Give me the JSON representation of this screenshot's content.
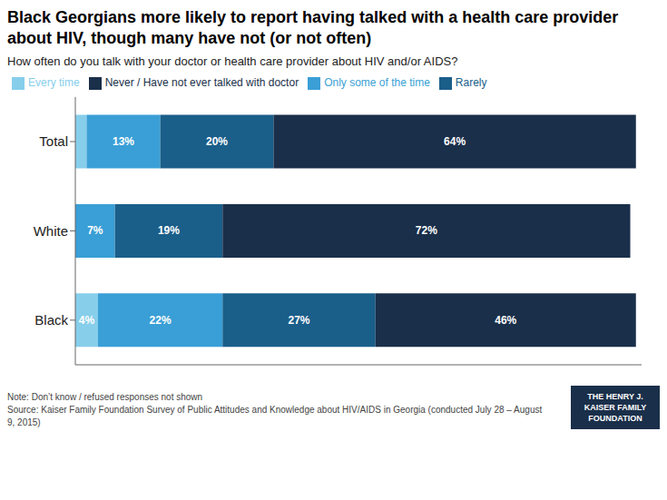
{
  "chart_data": {
    "type": "bar",
    "orientation": "horizontal",
    "stacked": true,
    "title": "Black Georgians more likely to report having talked with a health care provider about HIV, though many have not (or not often)",
    "subtitle": "How often do you talk with your doctor or health care provider about HIV and/or AIDS?",
    "categories": [
      "Total",
      "White",
      "Black"
    ],
    "series": [
      {
        "name": "Every time",
        "color": "#87CEEB",
        "values": [
          2,
          0,
          4
        ],
        "value_labels": [
          null,
          null,
          "4%"
        ]
      },
      {
        "name": "Only some of the time",
        "color": "#3a9fd6",
        "values": [
          13,
          7,
          22
        ],
        "value_labels": [
          "13%",
          "7%",
          "22%"
        ]
      },
      {
        "name": "Rarely",
        "color": "#1a5e8a",
        "values": [
          20,
          19,
          27
        ],
        "value_labels": [
          "20%",
          "19%",
          "27%"
        ]
      },
      {
        "name": "Never / Have not ever talked with doctor",
        "color": "#1a2f4a",
        "values": [
          64,
          72,
          46
        ],
        "value_labels": [
          "64%",
          "72%",
          "46%"
        ]
      }
    ],
    "xlim": [
      0,
      100
    ],
    "data_labels": true,
    "tick_labels": "y",
    "grid": false,
    "legend": "top",
    "annotations": [
      "Note: Don’t know / refused responses not shown",
      "Source: Kaiser Family Foundation Survey of Public Attitudes and Knowledge about HIV/AIDS in Georgia (conducted July 28 – August 9, 2015)",
      "THE HENRY J. KAISER FAMILY FOUNDATION"
    ]
  }
}
